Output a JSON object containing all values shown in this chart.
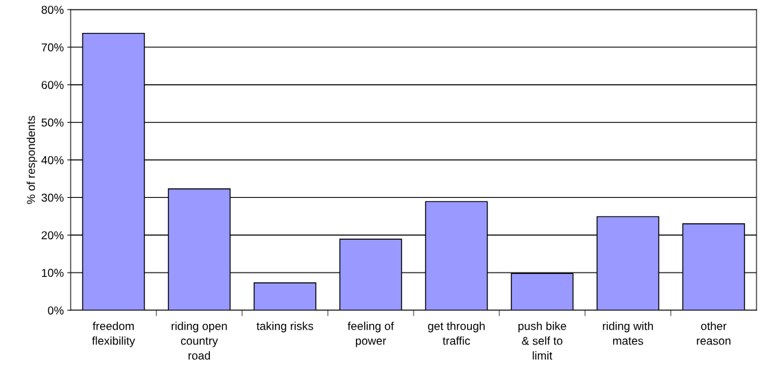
{
  "chart_data": {
    "type": "bar",
    "ylabel": "% of respondents",
    "categories": [
      "freedom\nflexibility",
      "riding open\ncountry\nroad",
      "taking risks",
      "feeling of\npower",
      "get through\ntraffic",
      "push bike\n& self to\nlimit",
      "riding with\nmates",
      "other\nreason"
    ],
    "values": [
      73.7,
      32.3,
      7.3,
      18.9,
      28.9,
      9.8,
      24.9,
      23.0
    ],
    "color": "#9999ff",
    "ylim": [
      0,
      80
    ],
    "yticks": [
      {
        "value": 0,
        "label": "0%"
      },
      {
        "value": 10,
        "label": "10%"
      },
      {
        "value": 20,
        "label": "20%"
      },
      {
        "value": 30,
        "label": "30%"
      },
      {
        "value": 40,
        "label": "40%"
      },
      {
        "value": 50,
        "label": "50%"
      },
      {
        "value": 60,
        "label": "60%"
      },
      {
        "value": 70,
        "label": "70%"
      },
      {
        "value": 80,
        "label": "80%"
      }
    ],
    "grid": "y",
    "legend": false
  }
}
